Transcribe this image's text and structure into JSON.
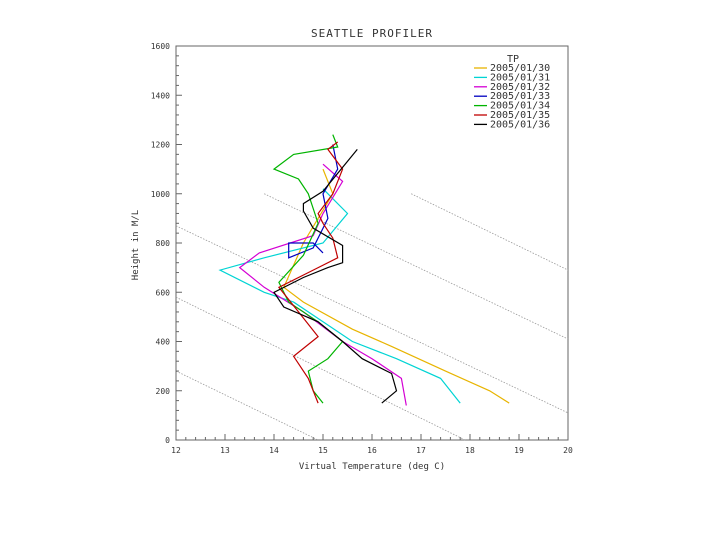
{
  "chart_data": {
    "type": "line",
    "title": "SEATTLE PROFILER",
    "xlabel": "Virtual Temperature (deg C)",
    "ylabel": "Height in M/L",
    "xlim": [
      12,
      20
    ],
    "ylim": [
      0,
      1600
    ],
    "x_ticks": [
      "12",
      "13",
      "14",
      "15",
      "16",
      "17",
      "18",
      "19",
      "20"
    ],
    "y_ticks": [
      "0",
      "200",
      "400",
      "600",
      "800",
      "1000",
      "1200",
      "1400",
      "1600"
    ],
    "legend_title": "TP",
    "legend_position": "top-right",
    "reference_lines": [
      {
        "x": [
          12.0,
          14.9
        ],
        "y": [
          280,
          0
        ]
      },
      {
        "x": [
          12.0,
          17.9
        ],
        "y": [
          580,
          0
        ]
      },
      {
        "x": [
          12.0,
          20.0
        ],
        "y": [
          870,
          110
        ]
      },
      {
        "x": [
          13.8,
          20.0
        ],
        "y": [
          1000,
          410
        ]
      },
      {
        "x": [
          16.8,
          20.0
        ],
        "y": [
          1000,
          690
        ]
      }
    ],
    "series": [
      {
        "name": "2005/01/30",
        "color": "#e8b400",
        "x": [
          18.8,
          18.4,
          17.5,
          16.4,
          15.6,
          14.6,
          14.2,
          14.6,
          15.2,
          15.0
        ],
        "y": [
          150,
          200,
          280,
          380,
          450,
          560,
          620,
          800,
          1000,
          1100
        ]
      },
      {
        "name": "2005/01/31",
        "color": "#00d4d4",
        "x": [
          17.8,
          17.4,
          16.5,
          15.6,
          15.0,
          14.4,
          13.8,
          12.9,
          13.8,
          15.0,
          15.5,
          15.0
        ],
        "y": [
          150,
          250,
          330,
          400,
          480,
          560,
          600,
          690,
          740,
          800,
          920,
          1020
        ]
      },
      {
        "name": "2005/01/32",
        "color": "#d400d4",
        "x": [
          16.7,
          16.6,
          16.0,
          15.4,
          14.6,
          13.8,
          13.3,
          13.7,
          14.8,
          15.0,
          15.4,
          15.0
        ],
        "y": [
          140,
          250,
          330,
          400,
          520,
          620,
          700,
          760,
          830,
          920,
          1050,
          1120
        ]
      },
      {
        "name": "2005/01/33",
        "color": "#0000c0",
        "x": [
          15.0,
          14.8,
          14.3,
          14.3,
          14.8,
          15.1,
          15.0,
          15.3,
          15.2
        ],
        "y": [
          760,
          800,
          800,
          740,
          780,
          900,
          1000,
          1100,
          1200
        ]
      },
      {
        "name": "2005/01/34",
        "color": "#00b400",
        "x": [
          15.0,
          14.8,
          14.7,
          15.1,
          15.4,
          14.9,
          14.3,
          14.1,
          14.6,
          14.9,
          14.7,
          14.5,
          14.0,
          14.4,
          15.3,
          15.2
        ],
        "y": [
          150,
          200,
          280,
          330,
          400,
          480,
          560,
          640,
          750,
          880,
          1000,
          1060,
          1100,
          1160,
          1190,
          1240
        ]
      },
      {
        "name": "2005/01/35",
        "color": "#c00000",
        "x": [
          14.9,
          14.7,
          14.4,
          14.9,
          14.5,
          14.1,
          14.8,
          15.3,
          15.2,
          15.0,
          14.9,
          15.2,
          15.4,
          15.1,
          15.3
        ],
        "y": [
          150,
          250,
          340,
          420,
          520,
          620,
          690,
          740,
          820,
          880,
          920,
          1000,
          1100,
          1180,
          1210
        ]
      },
      {
        "name": "2005/01/36",
        "color": "#000000",
        "x": [
          16.2,
          16.5,
          16.4,
          15.8,
          15.4,
          14.9,
          14.2,
          14.0,
          14.6,
          15.1,
          15.4,
          15.4,
          14.8,
          14.6,
          14.6,
          15.0,
          15.7
        ],
        "y": [
          150,
          200,
          270,
          330,
          400,
          480,
          540,
          600,
          660,
          700,
          720,
          790,
          860,
          930,
          960,
          1010,
          1180
        ]
      }
    ]
  }
}
